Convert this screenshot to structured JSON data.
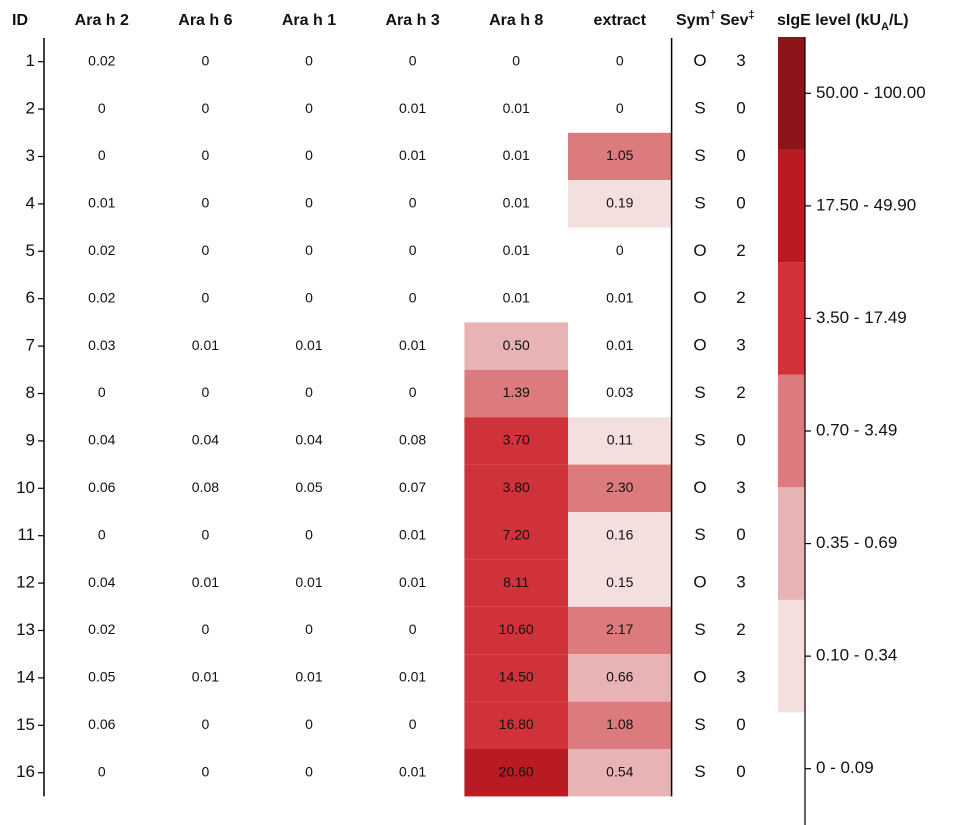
{
  "chart_data": {
    "type": "heatmap",
    "row_header": "ID",
    "columns": [
      "Ara h 2",
      "Ara h 6",
      "Ara h 1",
      "Ara h 3",
      "Ara h 8",
      "extract"
    ],
    "rows": [
      1,
      2,
      3,
      4,
      5,
      6,
      7,
      8,
      9,
      10,
      11,
      12,
      13,
      14,
      15,
      16
    ],
    "values": [
      [
        0.02,
        0,
        0,
        0,
        0,
        0
      ],
      [
        0,
        0,
        0,
        0.01,
        0.01,
        0
      ],
      [
        0,
        0,
        0,
        0.01,
        0.01,
        1.05
      ],
      [
        0.01,
        0,
        0,
        0,
        0.01,
        0.19
      ],
      [
        0.02,
        0,
        0,
        0,
        0.01,
        0
      ],
      [
        0.02,
        0,
        0,
        0,
        0.01,
        0.01
      ],
      [
        0.03,
        0.01,
        0.01,
        0.01,
        0.5,
        0.01
      ],
      [
        0,
        0,
        0,
        0,
        1.39,
        0.03
      ],
      [
        0.04,
        0.04,
        0.04,
        0.08,
        3.7,
        0.11
      ],
      [
        0.06,
        0.08,
        0.05,
        0.07,
        3.8,
        2.3
      ],
      [
        0,
        0,
        0,
        0.01,
        7.2,
        0.16
      ],
      [
        0.04,
        0.01,
        0.01,
        0.01,
        8.11,
        0.15
      ],
      [
        0.02,
        0,
        0,
        0,
        10.6,
        2.17
      ],
      [
        0.05,
        0.01,
        0.01,
        0.01,
        14.5,
        0.66
      ],
      [
        0.06,
        0,
        0,
        0,
        16.8,
        1.08
      ],
      [
        0,
        0,
        0,
        0.01,
        20.6,
        0.54
      ]
    ],
    "value_labels": [
      [
        "0.02",
        "0",
        "0",
        "0",
        "0",
        "0"
      ],
      [
        "0",
        "0",
        "0",
        "0.01",
        "0.01",
        "0"
      ],
      [
        "0",
        "0",
        "0",
        "0.01",
        "0.01",
        "1.05"
      ],
      [
        "0.01",
        "0",
        "0",
        "0",
        "0.01",
        "0.19"
      ],
      [
        "0.02",
        "0",
        "0",
        "0",
        "0.01",
        "0"
      ],
      [
        "0.02",
        "0",
        "0",
        "0",
        "0.01",
        "0.01"
      ],
      [
        "0.03",
        "0.01",
        "0.01",
        "0.01",
        "0.50",
        "0.01"
      ],
      [
        "0",
        "0",
        "0",
        "0",
        "1.39",
        "0.03"
      ],
      [
        "0.04",
        "0.04",
        "0.04",
        "0.08",
        "3.70",
        "0.11"
      ],
      [
        "0.06",
        "0.08",
        "0.05",
        "0.07",
        "3.80",
        "2.30"
      ],
      [
        "0",
        "0",
        "0",
        "0.01",
        "7.20",
        "0.16"
      ],
      [
        "0.04",
        "0.01",
        "0.01",
        "0.01",
        "8.11",
        "0.15"
      ],
      [
        "0.02",
        "0",
        "0",
        "0",
        "10.60",
        "2.17"
      ],
      [
        "0.05",
        "0.01",
        "0.01",
        "0.01",
        "14.50",
        "0.66"
      ],
      [
        "0.06",
        "0",
        "0",
        "0",
        "16.80",
        "1.08"
      ],
      [
        "0",
        "0",
        "0",
        "0.01",
        "20.60",
        "0.54"
      ]
    ],
    "sym_header": {
      "text": "Sym",
      "mark": "†"
    },
    "sev_header": {
      "text": "Sev",
      "mark": "‡"
    },
    "sym": [
      "O",
      "S",
      "S",
      "S",
      "O",
      "O",
      "O",
      "S",
      "S",
      "O",
      "S",
      "O",
      "S",
      "O",
      "S",
      "S"
    ],
    "sev": [
      3,
      0,
      0,
      0,
      2,
      2,
      3,
      2,
      0,
      3,
      0,
      3,
      2,
      3,
      0,
      0
    ],
    "color_scale": {
      "title": {
        "before": "sIgE level (kU",
        "sub": "A",
        "after": "/L)"
      },
      "bins": [
        {
          "label": "0 - 0.09",
          "range": [
            0,
            0.09
          ],
          "color": "#ffffff"
        },
        {
          "label": "0.10 - 0.34",
          "range": [
            0.1,
            0.34
          ],
          "color": "#f4dfdf"
        },
        {
          "label": "0.35 - 0.69",
          "range": [
            0.35,
            0.69
          ],
          "color": "#e8b3b4"
        },
        {
          "label": "0.70 - 3.49",
          "range": [
            0.7,
            3.49
          ],
          "color": "#dc7b7d"
        },
        {
          "label": "3.50 - 17.49",
          "range": [
            3.5,
            17.49
          ],
          "color": "#cf3339"
        },
        {
          "label": "17.50 - 49.90",
          "range": [
            17.5,
            49.9
          ],
          "color": "#b81c22"
        },
        {
          "label": "50.00 - 100.00",
          "range": [
            50,
            100
          ],
          "color": "#8b1518"
        }
      ]
    }
  }
}
